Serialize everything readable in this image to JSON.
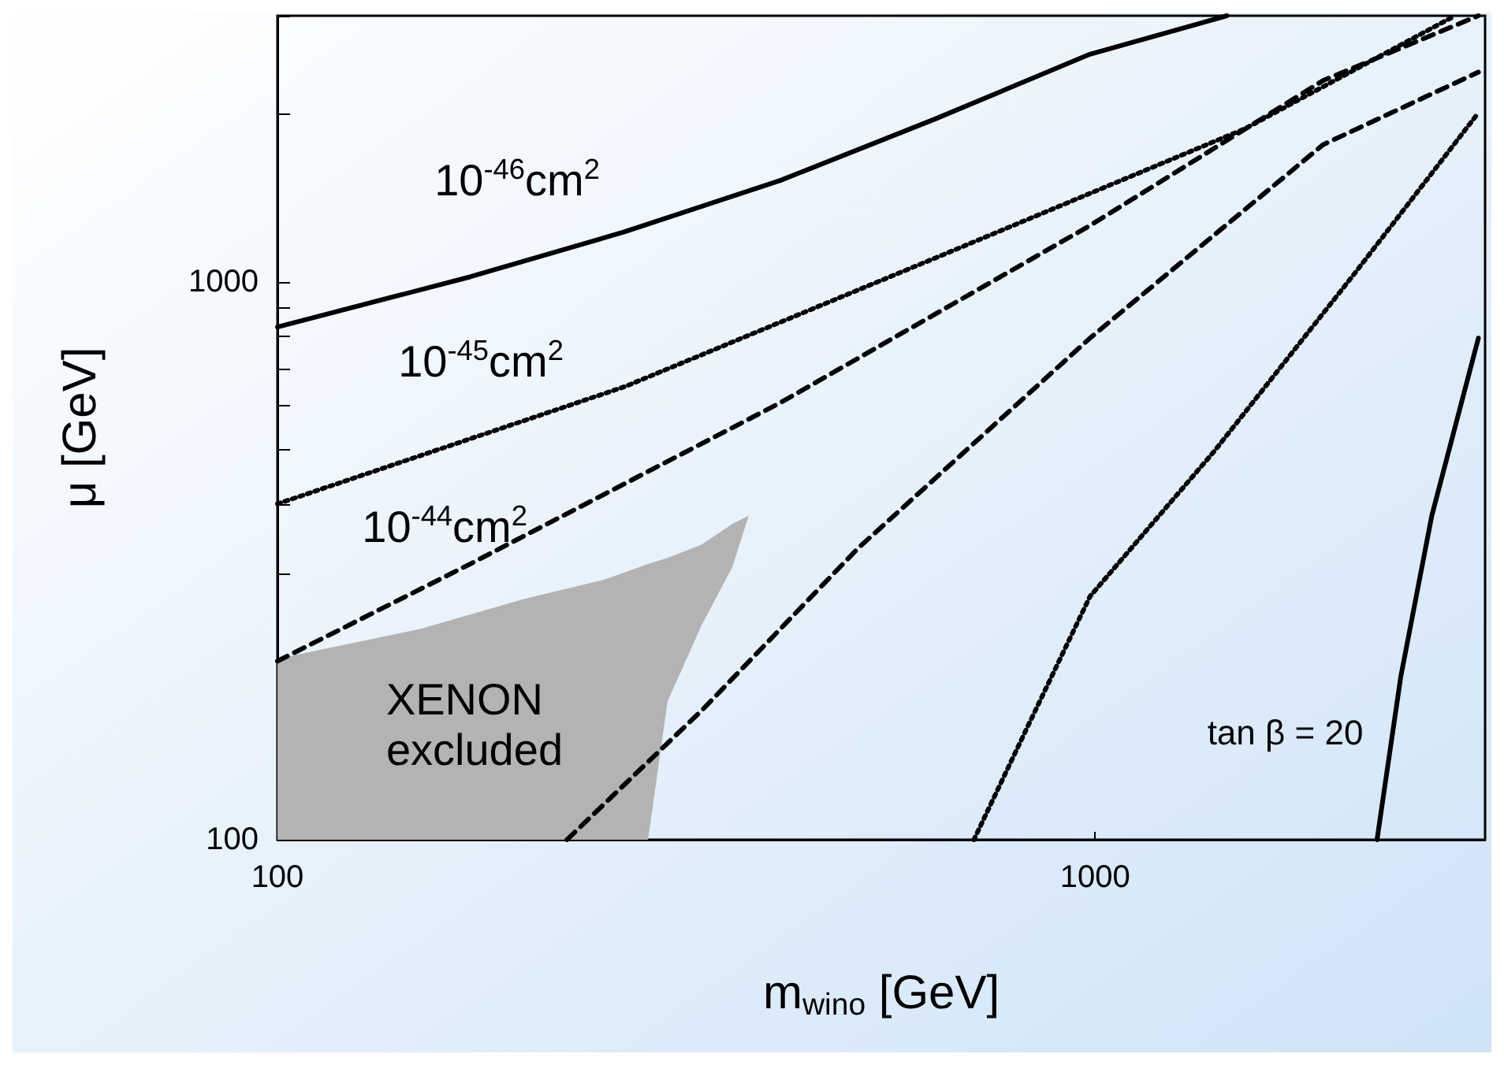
{
  "chart_data": {
    "type": "line",
    "xlabel": "m$_{wino}$ [GeV]",
    "ylabel": "μ [GeV]",
    "log": "xy",
    "xlim": [
      100,
      3000
    ],
    "ylim": [
      100,
      3000
    ],
    "xticks": [
      100,
      1000
    ],
    "yticks": [
      100,
      {
        "value": 200,
        "label": null
      },
      {
        "value": 300,
        "label": null
      },
      {
        "value": 400,
        "label": null
      },
      {
        "value": 500,
        "label": null
      },
      {
        "value": 600,
        "label": null
      },
      {
        "value": 700,
        "label": null
      },
      {
        "value": 800,
        "label": null
      },
      {
        "value": 900,
        "label": null
      },
      1000,
      {
        "value": 2000,
        "label": null
      },
      {
        "value": 3000,
        "label": null
      }
    ],
    "grid": false,
    "marker": "none",
    "series": [
      {
        "type": "area",
        "color": "#b3b3b3",
        "x": [
          100,
          150,
          200,
          250,
          284,
          300,
          330,
          360,
          377,
          360,
          330,
          300,
          284,
          100
        ],
        "values": [
          211,
          239,
          270,
          292,
          312,
          320,
          338,
          368,
          381,
          308,
          242,
          177,
          100,
          100
        ]
      },
      {
        "color": "#000000",
        "line_style": "solid",
        "x": [
          100,
          172,
          266,
          412,
          638,
          986,
          1450
        ],
        "values": [
          830,
          1021,
          1230,
          1520,
          1960,
          2560,
          3000
        ]
      },
      {
        "color": "#000000",
        "line_style": "dotted",
        "x": [
          100,
          266,
          638,
          1528,
          2756
        ],
        "values": [
          400,
          649,
          1104,
          1884,
          3000
        ]
      },
      {
        "color": "#000000",
        "line_style": "dashed",
        "x": [
          100,
          172,
          412,
          986,
          1901,
          2944
        ],
        "values": [
          209,
          312,
          607,
          1262,
          2296,
          3000
        ]
      },
      {
        "color": "#000000",
        "line_style": "dashed",
        "x": [
          226,
          331,
          513,
          986,
          1901,
          2944
        ],
        "values": [
          100,
          171,
          333,
          793,
          1762,
          2377
        ]
      },
      {
        "color": "#000000",
        "line_style": "dotted",
        "x": [
          711,
          828,
          986,
          1399,
          2075,
          2944
        ],
        "values": [
          100,
          160,
          273,
          497,
          1033,
          2010
        ]
      },
      {
        "color": "#000000",
        "line_style": "solid",
        "x": [
          2213,
          2366,
          2582,
          2944
        ],
        "values": [
          100,
          196,
          381,
          793
        ]
      }
    ],
    "annotations": [
      "10$^{-46}$cm$^{2}$",
      "10$^{-45}$cm$^{2}$",
      "10$^{-44}$cm$^{2}$",
      "XENON\nexcluded",
      "tan β = 20"
    ]
  }
}
